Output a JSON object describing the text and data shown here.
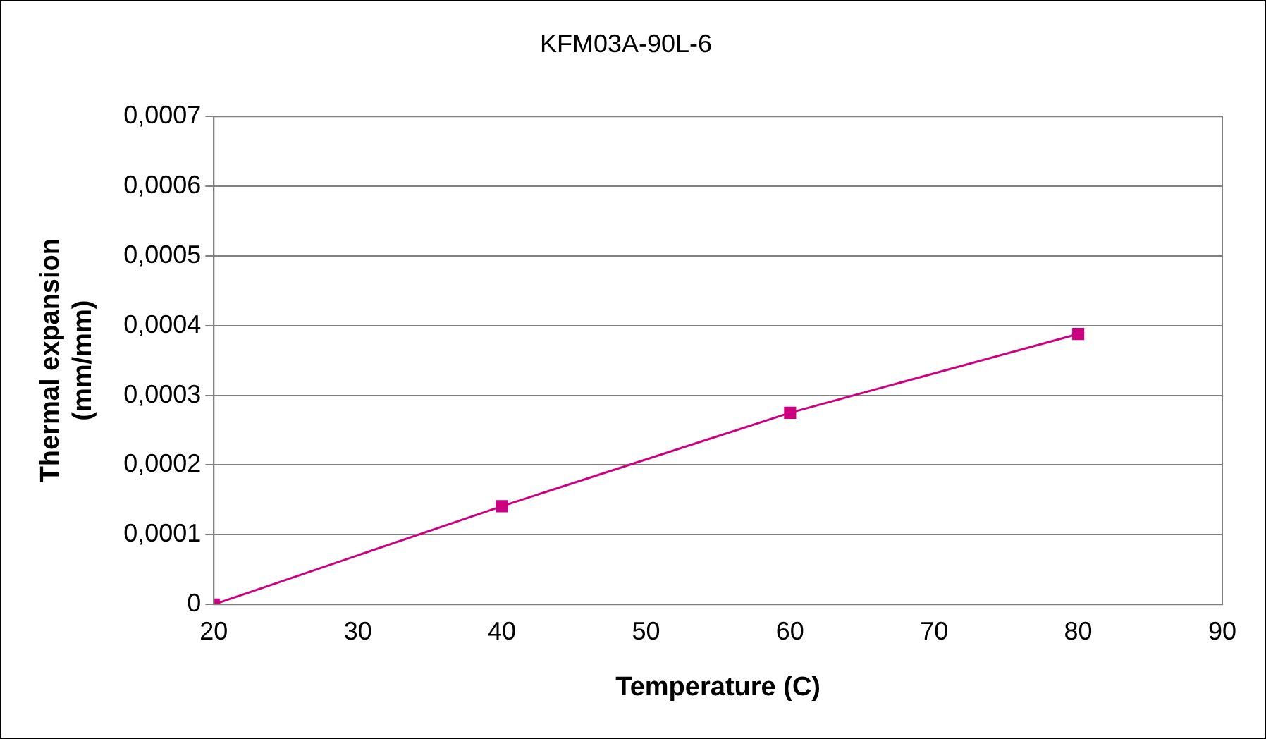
{
  "chart_data": {
    "type": "line",
    "title": "KFM03A-90L-6",
    "xlabel": "Temperature (C)",
    "ylabel": "Thermal expansion\n(mm/mm)",
    "x": [
      20,
      40,
      60,
      80
    ],
    "series": [
      {
        "color": "#cc0080",
        "values": [
          0,
          0.000141,
          0.000275,
          0.000388
        ]
      }
    ],
    "xlim": [
      20,
      90
    ],
    "xticks": [
      20,
      30,
      40,
      50,
      60,
      70,
      80,
      90
    ],
    "ylim": [
      0,
      0.0007
    ],
    "yticks": [
      0,
      {
        "value": 0.0001,
        "label": "0,0001"
      },
      {
        "value": 0.0002,
        "label": "0,0002"
      },
      {
        "value": 0.0003,
        "label": "0,0003"
      },
      {
        "value": 0.0004,
        "label": "0,0004"
      },
      {
        "value": 0.0005,
        "label": "0,0005"
      },
      {
        "value": 0.0006,
        "label": "0,0006"
      },
      {
        "value": 0.0007,
        "label": "0,0007"
      }
    ],
    "grid": "y",
    "legend": false,
    "marker": "square",
    "line_style": "solid"
  }
}
